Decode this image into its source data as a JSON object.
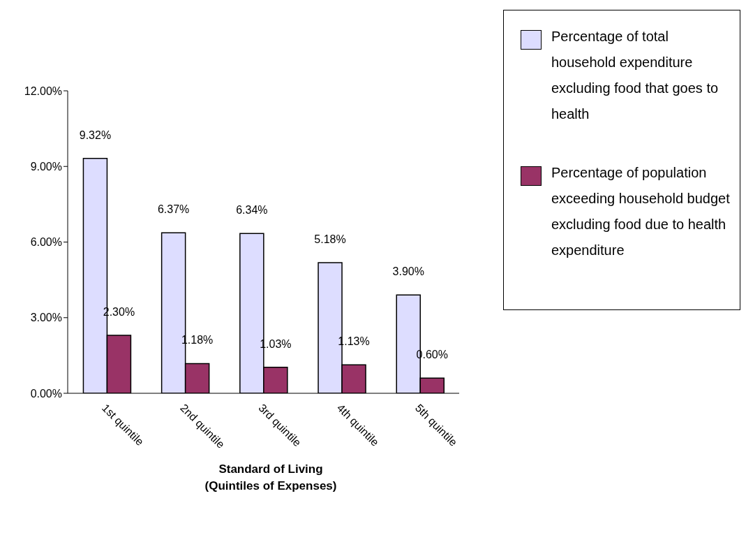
{
  "chart_data": {
    "type": "bar",
    "categories": [
      "1st quintile",
      "2nd quintile",
      "3rd quintile",
      "4th quintile",
      "5th quintile"
    ],
    "xlabel": "Standard of Living\n(Quintiles of Expenses)",
    "series": [
      {
        "name": "Percentage of total household expenditure excluding food that goes to health",
        "color": "#ddddff",
        "values": [
          9.32,
          6.37,
          6.34,
          5.18,
          3.9
        ],
        "value_labels": [
          "9.32%",
          "6.37%",
          "6.34%",
          "5.18%",
          "3.90%"
        ]
      },
      {
        "name": "Percentage of population exceeding household budget excluding food due to health expenditure",
        "color": "#993366",
        "values": [
          2.3,
          1.18,
          1.03,
          1.13,
          0.6
        ],
        "value_labels": [
          "2.30%",
          "1.18%",
          "1.03%",
          "1.13%",
          "0.60%"
        ]
      }
    ],
    "ylim": [
      0,
      12
    ],
    "yticks": [
      {
        "value": 0,
        "label": "0.00%"
      },
      {
        "value": 3,
        "label": "3.00%"
      },
      {
        "value": 6,
        "label": "6.00%"
      },
      {
        "value": 9,
        "label": "9.00%"
      },
      {
        "value": 12,
        "label": "12.00%"
      }
    ],
    "grid": false,
    "legend": "top right"
  }
}
